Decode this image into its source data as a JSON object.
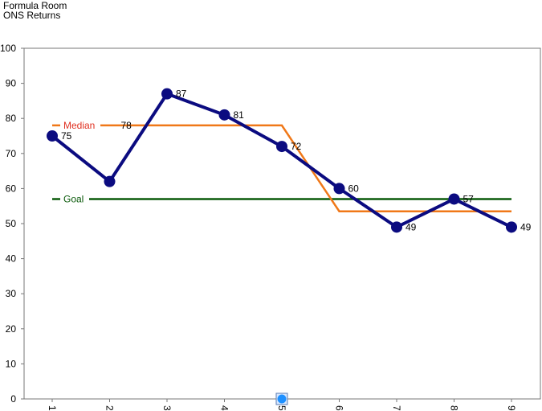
{
  "header": {
    "title": "Formula Room",
    "subtitle": "ONS Returns"
  },
  "chart_data": {
    "type": "line",
    "categories": [
      "1",
      "2",
      "3",
      "4",
      "5",
      "6",
      "7",
      "8",
      "9"
    ],
    "ylim": [
      0,
      100
    ],
    "yticks": [
      0,
      10,
      20,
      30,
      40,
      50,
      60,
      70,
      80,
      90,
      100
    ],
    "grid": false,
    "series": [
      {
        "name": "",
        "values": [
          75,
          62,
          87,
          81,
          72,
          60,
          49,
          57,
          49
        ],
        "color": "#0b0b80",
        "labels": [
          "75",
          "",
          "87",
          "81",
          "72",
          "60",
          "49",
          "57",
          "49"
        ]
      },
      {
        "name": "Median",
        "values": [
          78,
          78,
          78,
          78,
          78,
          53.5,
          53.5,
          53.5,
          53.5
        ],
        "color": "#f07818",
        "labels": [
          "",
          "78",
          "",
          "",
          "",
          "",
          "",
          "",
          ""
        ]
      },
      {
        "name": "Goal",
        "values": [
          57,
          57,
          57,
          57,
          57,
          57,
          57,
          57,
          57
        ],
        "color": "#0a5a0a"
      }
    ],
    "marker_point": {
      "category": "5",
      "value": 0,
      "color": "#1e90ff"
    }
  }
}
